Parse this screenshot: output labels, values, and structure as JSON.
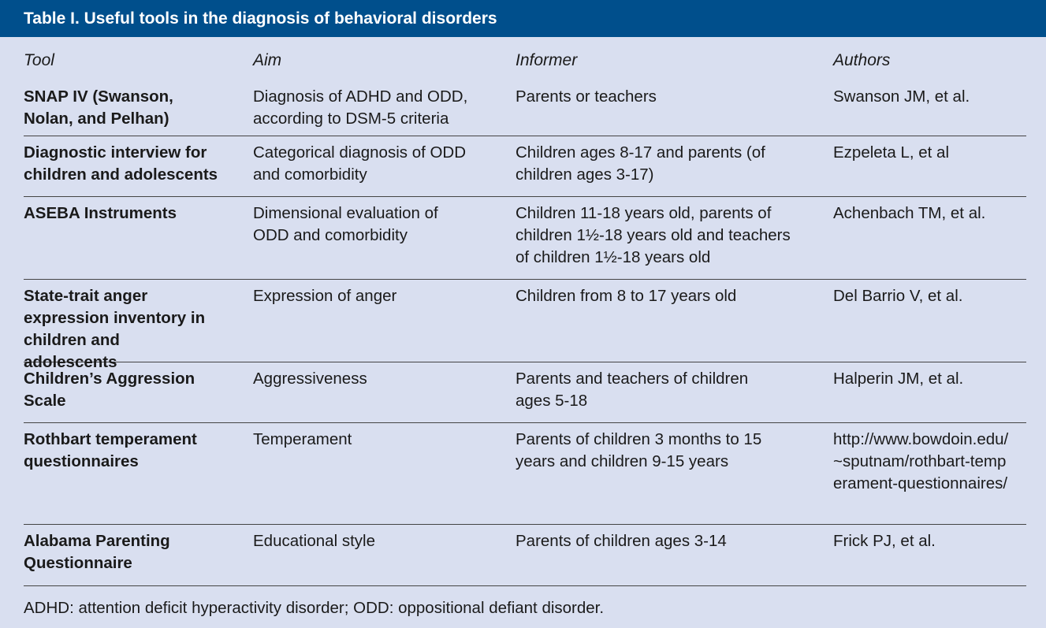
{
  "table": {
    "title": "Table I.  Useful tools in the diagnosis of behavioral disorders",
    "headers": {
      "tool": "Tool",
      "aim": "Aim",
      "informer": "Informer",
      "authors": "Authors"
    },
    "rows": [
      {
        "tool": "SNAP IV (Swanson, Nolan, and Pelhan)",
        "aim": "Diagnosis of ADHD and ODD, according to DSM-5 criteria",
        "informer": "Parents or teachers",
        "authors": "Swanson JM, et al."
      },
      {
        "tool": "Diagnostic interview for children and adolescents",
        "aim": "Categorical diagnosis of ODD and comorbidity",
        "informer": "Children ages 8-17 and parents (of children ages 3-17)",
        "authors": "Ezpeleta L, et al"
      },
      {
        "tool": "ASEBA Instruments",
        "aim": "Dimensional evaluation of ODD and comorbidity",
        "informer": "Children 11-18 years old, parents of children 1½-18 years old and teachers of children 1½-18 years old",
        "authors": "Achenbach TM, et al."
      },
      {
        "tool": "State-trait anger expression inventory in children and adolescents",
        "aim": "Expression of anger",
        "informer": "Children from 8 to 17 years old",
        "authors": "Del Barrio V, et al."
      },
      {
        "tool": "Children’s Aggression Scale",
        "aim": "Aggressiveness",
        "informer": "Parents and teachers of children ages 5-18",
        "authors": "Halperin JM, et al."
      },
      {
        "tool": "Rothbart temperament questionnaires",
        "aim": "Temperament",
        "informer": "Parents of children 3 months to 15 years and children 9-15 years",
        "authors": "http://www.bowdoin.edu/~sputnam/rothbart-temperament-questionnaires/"
      },
      {
        "tool": "Alabama Parenting Questionnaire",
        "aim": "Educational style",
        "informer": "Parents of children ages 3-14",
        "authors": "Frick PJ, et al."
      }
    ],
    "footnote": "ADHD: attention deficit hyperactivity disorder; ODD: oppositional defiant disorder."
  },
  "colors": {
    "title_bar": "#004f8c",
    "background": "#d9dff0",
    "text": "#1a1a1a",
    "rule": "#444444"
  }
}
